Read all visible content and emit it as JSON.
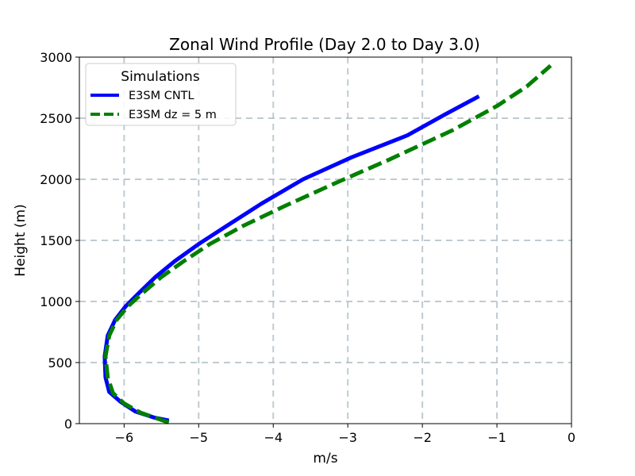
{
  "chart_data": {
    "type": "line",
    "title": "Zonal Wind Profile (Day 2.0 to Day 3.0)",
    "xlabel": "m/s",
    "ylabel": "Height (m)",
    "xlim": [
      -6.6,
      0
    ],
    "ylim": [
      0,
      3000
    ],
    "xticks": [
      -6,
      -5,
      -4,
      -3,
      -2,
      -1,
      0
    ],
    "xtick_labels": [
      "−6",
      "−5",
      "−4",
      "−3",
      "−2",
      "−1",
      "0"
    ],
    "yticks": [
      0,
      500,
      1000,
      1500,
      2000,
      2500,
      3000
    ],
    "ytick_labels": [
      "0",
      "500",
      "1000",
      "1500",
      "2000",
      "2500",
      "3000"
    ],
    "grid": true,
    "legend": {
      "title": "Simulations",
      "placement": "upper-left"
    },
    "series": [
      {
        "name": "E3SM CNTL",
        "color": "#0000ff",
        "linestyle": "solid",
        "x": [
          -5.4,
          -5.6,
          -5.85,
          -6.05,
          -6.2,
          -6.25,
          -6.26,
          -6.22,
          -6.12,
          -5.98,
          -5.8,
          -5.58,
          -5.32,
          -5.0,
          -4.62,
          -4.16,
          -3.6,
          -2.95,
          -2.2,
          -1.7,
          -1.24
        ],
        "y": [
          25,
          50,
          100,
          180,
          260,
          380,
          550,
          720,
          850,
          960,
          1070,
          1200,
          1330,
          1470,
          1620,
          1800,
          2000,
          2180,
          2360,
          2530,
          2680
        ]
      },
      {
        "name": "E3SM dz = 5 m",
        "color": "#008000",
        "linestyle": "dashed",
        "x": [
          -5.4,
          -5.55,
          -5.78,
          -6.0,
          -6.15,
          -6.22,
          -6.25,
          -6.2,
          -6.1,
          -5.95,
          -5.75,
          -5.5,
          -5.2,
          -4.85,
          -4.4,
          -3.85,
          -3.2,
          -2.45,
          -1.6,
          -1.0,
          -0.6,
          -0.28
        ],
        "y": [
          10,
          40,
          90,
          165,
          250,
          380,
          550,
          720,
          850,
          960,
          1070,
          1200,
          1330,
          1470,
          1620,
          1780,
          1960,
          2160,
          2400,
          2600,
          2760,
          2930
        ]
      }
    ]
  }
}
